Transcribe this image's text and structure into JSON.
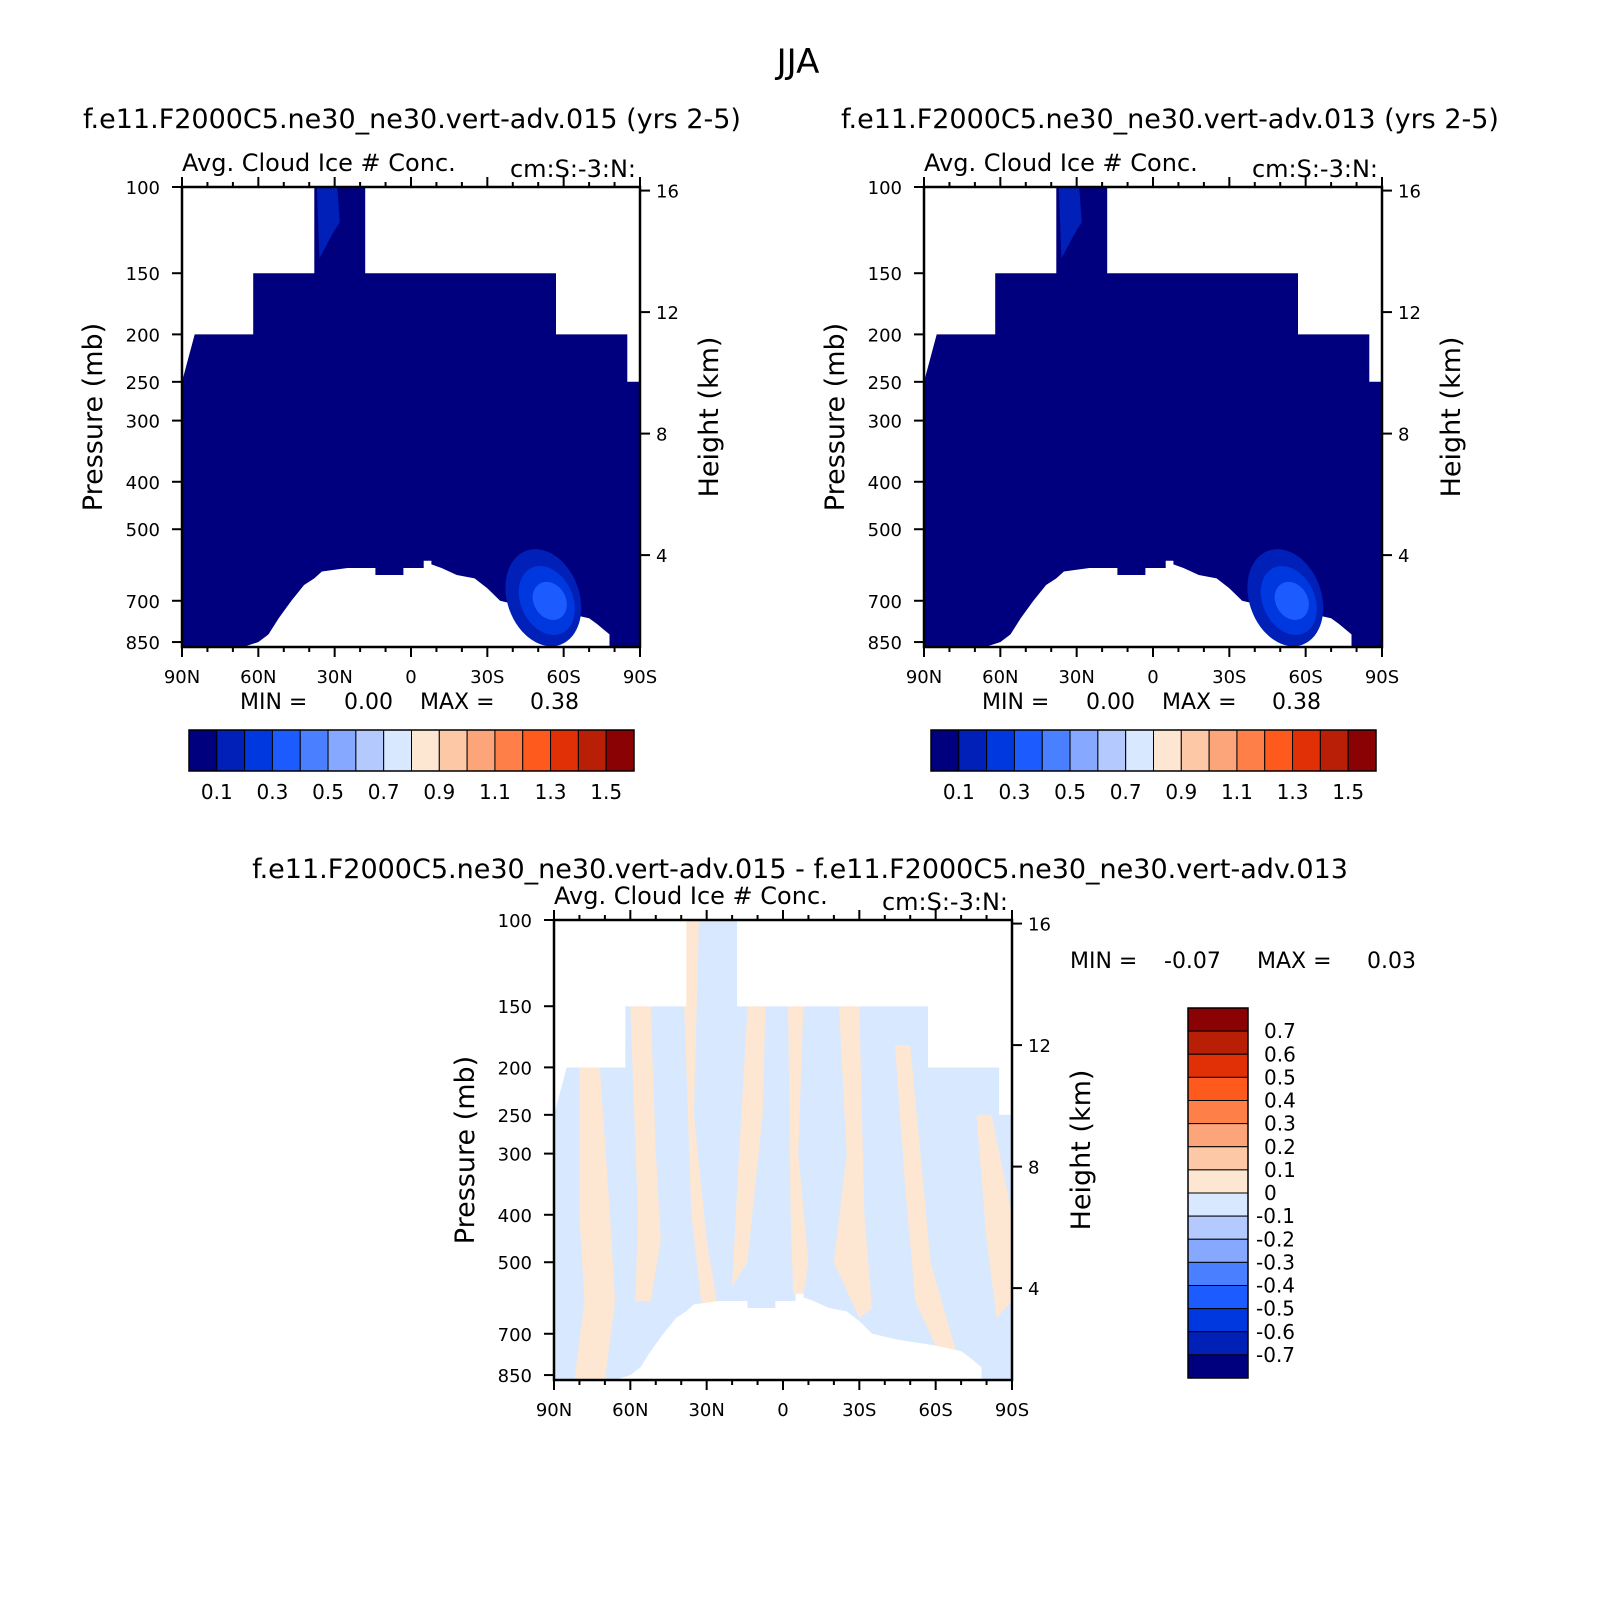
{
  "season": "JJA",
  "panels": [
    {
      "id": "p1",
      "case_title": "f.e11.F2000C5.ne30_ne30.vert-adv.015 (yrs 2-5)",
      "variable": "Avg. Cloud Ice # Conc.",
      "units": "cm:S:-3:N:",
      "ylabel": "Pressure (mb)",
      "ylabel_right": "Height (km)",
      "stats": {
        "min_label": "MIN =",
        "min": "0.00",
        "max_label": "MAX =",
        "max": "0.38"
      }
    },
    {
      "id": "p2",
      "case_title": "f.e11.F2000C5.ne30_ne30.vert-adv.013 (yrs 2-5)",
      "variable": "Avg. Cloud Ice # Conc.",
      "units": "cm:S:-3:N:",
      "ylabel": "Pressure (mb)",
      "ylabel_right": "Height (km)",
      "stats": {
        "min_label": "MIN =",
        "min": "0.00",
        "max_label": "MAX =",
        "max": "0.38"
      }
    },
    {
      "id": "p3",
      "case_title": "f.e11.F2000C5.ne30_ne30.vert-adv.015 - f.e11.F2000C5.ne30_ne30.vert-adv.013",
      "variable": "Avg. Cloud Ice # Conc.",
      "units": "cm:S:-3:N:",
      "ylabel": "Pressure (mb)",
      "ylabel_right": "Height (km)",
      "stats": {
        "min_label": "MIN =",
        "min": "-0.07",
        "max_label": "MAX =",
        "max": "0.03"
      }
    }
  ],
  "chart_data": [
    {
      "type": "heatmap",
      "title": "Avg. Cloud Ice # Conc.",
      "xlabel": "",
      "ylabel": "Pressure (mb)",
      "ylabel_right": "Height (km)",
      "x_ticks": [
        "90N",
        "60N",
        "30N",
        "0",
        "30S",
        "60S",
        "90S"
      ],
      "x_ticks_deg": [
        90,
        60,
        30,
        0,
        -30,
        -60,
        -90
      ],
      "y_ticks": [
        100,
        150,
        200,
        250,
        300,
        400,
        500,
        700,
        850
      ],
      "y_scale": "log",
      "ylim": [
        870,
        100
      ],
      "right_ticks_km": [
        4,
        8,
        12,
        16
      ],
      "min": 0.0,
      "max": 0.38,
      "colorbar_levels": [
        0.1,
        0.2,
        0.3,
        0.4,
        0.5,
        0.6,
        0.7,
        0.8,
        0.9,
        1.0,
        1.1,
        1.2,
        1.3,
        1.4,
        1.5
      ],
      "colorbar_labels": [
        "0.1",
        "0.3",
        "0.5",
        "0.7",
        "0.9",
        "1.1",
        "1.3",
        "1.5"
      ],
      "colorbar_colors": [
        "#00007f",
        "#0020b8",
        "#0038e0",
        "#1c5cff",
        "#4a80ff",
        "#86a8ff",
        "#b4caff",
        "#d7e8ff",
        "#fde7d2",
        "#fdc8a6",
        "#fda57a",
        "#ff7f49",
        "#ff5a1e",
        "#e23006",
        "#b81f06",
        "#8a0203"
      ]
    },
    {
      "type": "heatmap",
      "title": "Avg. Cloud Ice # Conc.",
      "xlabel": "",
      "ylabel": "Pressure (mb)",
      "ylabel_right": "Height (km)",
      "x_ticks": [
        "90N",
        "60N",
        "30N",
        "0",
        "30S",
        "60S",
        "90S"
      ],
      "x_ticks_deg": [
        90,
        60,
        30,
        0,
        -30,
        -60,
        -90
      ],
      "y_ticks": [
        100,
        150,
        200,
        250,
        300,
        400,
        500,
        700,
        850
      ],
      "y_scale": "log",
      "ylim": [
        870,
        100
      ],
      "right_ticks_km": [
        4,
        8,
        12,
        16
      ],
      "min": 0.0,
      "max": 0.38,
      "colorbar_levels": [
        0.1,
        0.2,
        0.3,
        0.4,
        0.5,
        0.6,
        0.7,
        0.8,
        0.9,
        1.0,
        1.1,
        1.2,
        1.3,
        1.4,
        1.5
      ],
      "colorbar_labels": [
        "0.1",
        "0.3",
        "0.5",
        "0.7",
        "0.9",
        "1.1",
        "1.3",
        "1.5"
      ],
      "colorbar_colors": [
        "#00007f",
        "#0020b8",
        "#0038e0",
        "#1c5cff",
        "#4a80ff",
        "#86a8ff",
        "#b4caff",
        "#d7e8ff",
        "#fde7d2",
        "#fdc8a6",
        "#fda57a",
        "#ff7f49",
        "#ff5a1e",
        "#e23006",
        "#b81f06",
        "#8a0203"
      ]
    },
    {
      "type": "heatmap",
      "title": "Avg. Cloud Ice # Conc.",
      "xlabel": "",
      "ylabel": "Pressure (mb)",
      "ylabel_right": "Height (km)",
      "x_ticks": [
        "90N",
        "60N",
        "30N",
        "0",
        "30S",
        "60S",
        "90S"
      ],
      "x_ticks_deg": [
        90,
        60,
        30,
        0,
        -30,
        -60,
        -90
      ],
      "y_ticks": [
        100,
        150,
        200,
        250,
        300,
        400,
        500,
        700,
        850
      ],
      "y_scale": "log",
      "ylim": [
        870,
        100
      ],
      "right_ticks_km": [
        4,
        8,
        12,
        16
      ],
      "min": -0.07,
      "max": 0.03,
      "colorbar_levels": [
        -0.7,
        -0.6,
        -0.5,
        -0.4,
        -0.3,
        -0.2,
        -0.1,
        0,
        0.1,
        0.2,
        0.3,
        0.4,
        0.5,
        0.6,
        0.7
      ],
      "colorbar_labels": [
        "0.7",
        "0.6",
        "0.5",
        "0.4",
        "0.3",
        "0.2",
        "0.1",
        "0",
        "-0.1",
        "-0.2",
        "-0.3",
        "-0.4",
        "-0.5",
        "-0.6",
        "-0.7"
      ],
      "colorbar_colors": [
        "#8a0203",
        "#b81f06",
        "#e23006",
        "#ff5a1e",
        "#ff7f49",
        "#fda57a",
        "#fdc8a6",
        "#fde7d2",
        "#d7e8ff",
        "#b4caff",
        "#86a8ff",
        "#4a80ff",
        "#1c5cff",
        "#0038e0",
        "#0020b8",
        "#00007f"
      ]
    }
  ]
}
